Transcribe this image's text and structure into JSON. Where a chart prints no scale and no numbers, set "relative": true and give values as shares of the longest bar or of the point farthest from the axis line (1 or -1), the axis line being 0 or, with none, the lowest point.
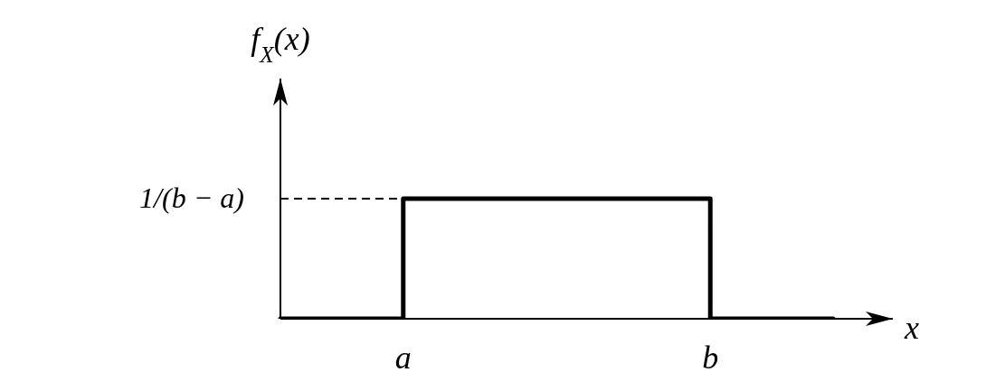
{
  "chart_data": {
    "type": "step",
    "relative": true,
    "xlabel": "x",
    "ylabel": "f$_{X}$(x)",
    "categories": [
      null,
      null,
      "a",
      null,
      null,
      null,
      null,
      "b",
      null,
      null
    ],
    "series": [
      {
        "color": "#000000",
        "values": [
          0,
          0,
          1,
          1,
          1,
          1,
          1,
          0,
          0,
          0
        ]
      }
    ],
    "ref_lines": [
      {
        "axis": "y",
        "value": 1,
        "label": "1/(b − a)",
        "line_style": "dashed",
        "color": "#000000"
      }
    ]
  }
}
